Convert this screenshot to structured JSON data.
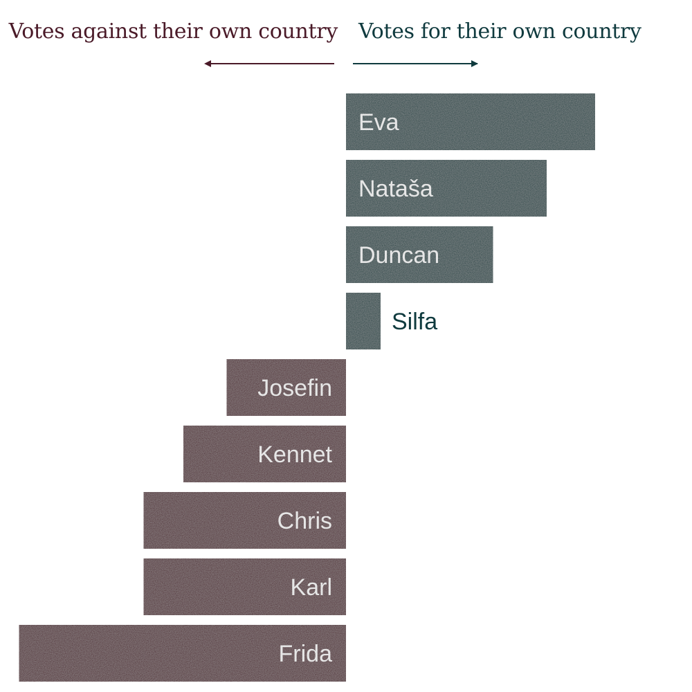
{
  "chart_data": {
    "type": "bar",
    "orientation": "horizontal-diverging",
    "direction_labels": {
      "against": "Votes against their own country",
      "for": "Votes for their own country"
    },
    "categories": [
      "Eva",
      "Nataša",
      "Duncan",
      "Silfa",
      "Josefin",
      "Kennet",
      "Chris",
      "Karl",
      "Frida"
    ],
    "values": [
      7.2,
      5.8,
      4.25,
      1.0,
      -3.45,
      -4.7,
      -5.85,
      -5.85,
      -9.45
    ],
    "colors": {
      "for": "#0f3a3e",
      "against": "#4a1a28",
      "label_inside": "#e6e6e6"
    },
    "grid": false,
    "legend": "none"
  }
}
